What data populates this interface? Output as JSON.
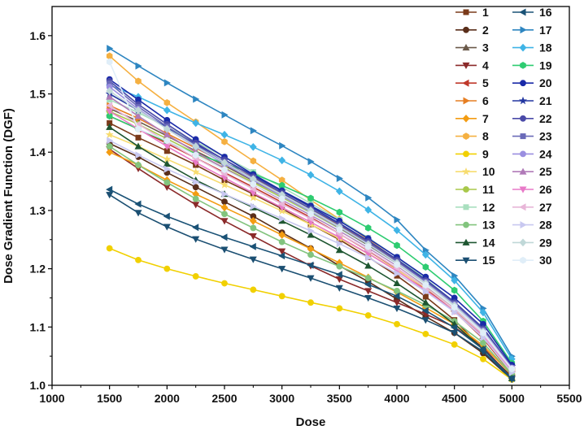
{
  "chart_data": {
    "type": "line",
    "title": "",
    "xlabel": "Dose",
    "ylabel": "Dose Gradient Function (DGF)",
    "xlim": [
      1000,
      5500
    ],
    "ylim": [
      1.0,
      1.65
    ],
    "xticks": [
      1000,
      1500,
      2000,
      2500,
      3000,
      3500,
      4000,
      4500,
      5000,
      5500
    ],
    "yticks": [
      1.0,
      1.1,
      1.2,
      1.3,
      1.4,
      1.5,
      1.6
    ],
    "x": [
      1500,
      1750,
      2000,
      2250,
      2500,
      2750,
      3000,
      3250,
      3500,
      3750,
      4000,
      4250,
      4500,
      4750,
      5000
    ],
    "legend_position": "top-right",
    "series": [
      {
        "name": "1",
        "color": "#7a3a1a",
        "marker": "square",
        "values": [
          1.45,
          1.425,
          1.402,
          1.378,
          1.352,
          1.328,
          1.303,
          1.276,
          1.25,
          1.22,
          1.188,
          1.152,
          1.112,
          1.062,
          1.015
        ]
      },
      {
        "name": "2",
        "color": "#5a2e1a",
        "marker": "circle",
        "values": [
          1.415,
          1.392,
          1.365,
          1.34,
          1.315,
          1.29,
          1.262,
          1.235,
          1.205,
          1.178,
          1.148,
          1.118,
          1.09,
          1.055,
          1.01
        ]
      },
      {
        "name": "3",
        "color": "#6b5a4a",
        "marker": "triangle-up",
        "values": [
          1.475,
          1.453,
          1.428,
          1.402,
          1.377,
          1.351,
          1.325,
          1.298,
          1.27,
          1.24,
          1.208,
          1.172,
          1.132,
          1.085,
          1.022
        ]
      },
      {
        "name": "4",
        "color": "#8b2a2a",
        "marker": "triangle-down",
        "values": [
          1.405,
          1.372,
          1.34,
          1.31,
          1.282,
          1.256,
          1.23,
          1.205,
          1.182,
          1.162,
          1.142,
          1.122,
          1.1,
          1.065,
          1.012
        ]
      },
      {
        "name": "5",
        "color": "#c0392b",
        "marker": "triangle-left",
        "values": [
          1.462,
          1.44,
          1.415,
          1.39,
          1.365,
          1.34,
          1.314,
          1.288,
          1.26,
          1.231,
          1.2,
          1.165,
          1.127,
          1.08,
          1.02
        ]
      },
      {
        "name": "6",
        "color": "#e67e22",
        "marker": "triangle-right",
        "values": [
          1.48,
          1.458,
          1.432,
          1.407,
          1.382,
          1.356,
          1.33,
          1.303,
          1.275,
          1.245,
          1.213,
          1.177,
          1.137,
          1.09,
          1.025
        ]
      },
      {
        "name": "7",
        "color": "#f39c12",
        "marker": "diamond",
        "values": [
          1.4,
          1.378,
          1.352,
          1.328,
          1.305,
          1.282,
          1.258,
          1.234,
          1.21,
          1.185,
          1.16,
          1.133,
          1.105,
          1.068,
          1.018
        ]
      },
      {
        "name": "8",
        "color": "#f5b041",
        "marker": "hexagon",
        "values": [
          1.565,
          1.522,
          1.485,
          1.452,
          1.418,
          1.385,
          1.352,
          1.318,
          1.285,
          1.25,
          1.215,
          1.178,
          1.138,
          1.088,
          1.022
        ]
      },
      {
        "name": "9",
        "color": "#f1d000",
        "marker": "circle",
        "values": [
          1.235,
          1.215,
          1.2,
          1.187,
          1.175,
          1.164,
          1.153,
          1.142,
          1.132,
          1.12,
          1.105,
          1.088,
          1.07,
          1.045,
          1.01
        ]
      },
      {
        "name": "10",
        "color": "#f7dc6f",
        "marker": "star",
        "values": [
          1.43,
          1.41,
          1.388,
          1.366,
          1.344,
          1.322,
          1.299,
          1.276,
          1.252,
          1.226,
          1.198,
          1.167,
          1.132,
          1.088,
          1.025
        ]
      },
      {
        "name": "11",
        "color": "#a8c84a",
        "marker": "circle",
        "values": [
          1.47,
          1.448,
          1.423,
          1.398,
          1.373,
          1.348,
          1.322,
          1.296,
          1.268,
          1.238,
          1.206,
          1.17,
          1.131,
          1.083,
          1.02
        ]
      },
      {
        "name": "12",
        "color": "#a9dfbf",
        "marker": "square",
        "values": [
          1.49,
          1.468,
          1.443,
          1.418,
          1.392,
          1.366,
          1.34,
          1.312,
          1.284,
          1.253,
          1.22,
          1.183,
          1.142,
          1.093,
          1.027
        ]
      },
      {
        "name": "13",
        "color": "#82c47e",
        "marker": "circle",
        "values": [
          1.41,
          1.378,
          1.348,
          1.32,
          1.294,
          1.27,
          1.246,
          1.224,
          1.204,
          1.184,
          1.162,
          1.138,
          1.11,
          1.073,
          1.018
        ]
      },
      {
        "name": "14",
        "color": "#1e5631",
        "marker": "triangle-up",
        "values": [
          1.443,
          1.41,
          1.38,
          1.352,
          1.328,
          1.305,
          1.282,
          1.258,
          1.232,
          1.205,
          1.175,
          1.142,
          1.105,
          1.062,
          1.012
        ]
      },
      {
        "name": "15",
        "color": "#1b4f72",
        "marker": "triangle-down",
        "values": [
          1.327,
          1.296,
          1.272,
          1.251,
          1.233,
          1.216,
          1.2,
          1.184,
          1.167,
          1.15,
          1.132,
          1.112,
          1.09,
          1.058,
          1.01
        ]
      },
      {
        "name": "16",
        "color": "#1a5276",
        "marker": "triangle-left",
        "values": [
          1.336,
          1.311,
          1.29,
          1.271,
          1.254,
          1.238,
          1.222,
          1.206,
          1.19,
          1.173,
          1.153,
          1.128,
          1.099,
          1.062,
          1.012
        ]
      },
      {
        "name": "17",
        "color": "#2e86c1",
        "marker": "triangle-right",
        "values": [
          1.578,
          1.548,
          1.519,
          1.491,
          1.464,
          1.437,
          1.411,
          1.384,
          1.355,
          1.322,
          1.284,
          1.232,
          1.188,
          1.132,
          1.05
        ]
      },
      {
        "name": "18",
        "color": "#3fb4e6",
        "marker": "diamond",
        "values": [
          1.515,
          1.495,
          1.472,
          1.45,
          1.43,
          1.409,
          1.386,
          1.361,
          1.333,
          1.301,
          1.266,
          1.224,
          1.18,
          1.125,
          1.045
        ]
      },
      {
        "name": "19",
        "color": "#2ecc71",
        "marker": "hexagon",
        "values": [
          1.462,
          1.44,
          1.418,
          1.397,
          1.381,
          1.363,
          1.343,
          1.321,
          1.297,
          1.27,
          1.24,
          1.203,
          1.163,
          1.11,
          1.038
        ]
      },
      {
        "name": "20",
        "color": "#1a2aa8",
        "marker": "circle",
        "values": [
          1.525,
          1.49,
          1.455,
          1.422,
          1.392,
          1.362,
          1.334,
          1.308,
          1.282,
          1.252,
          1.22,
          1.186,
          1.15,
          1.105,
          1.035
        ]
      },
      {
        "name": "21",
        "color": "#2236a0",
        "marker": "star",
        "values": [
          1.5,
          1.472,
          1.442,
          1.414,
          1.387,
          1.36,
          1.333,
          1.306,
          1.278,
          1.248,
          1.216,
          1.181,
          1.143,
          1.098,
          1.032
        ]
      },
      {
        "name": "22",
        "color": "#4a4aa8",
        "marker": "circle",
        "values": [
          1.522,
          1.482,
          1.448,
          1.416,
          1.387,
          1.358,
          1.33,
          1.303,
          1.276,
          1.247,
          1.215,
          1.18,
          1.142,
          1.097,
          1.03
        ]
      },
      {
        "name": "23",
        "color": "#6a6ab8",
        "marker": "square",
        "values": [
          1.518,
          1.478,
          1.444,
          1.412,
          1.383,
          1.355,
          1.327,
          1.3,
          1.273,
          1.244,
          1.212,
          1.178,
          1.14,
          1.095,
          1.03
        ]
      },
      {
        "name": "24",
        "color": "#9a8ee0",
        "marker": "circle",
        "values": [
          1.512,
          1.474,
          1.44,
          1.409,
          1.38,
          1.352,
          1.325,
          1.298,
          1.271,
          1.242,
          1.21,
          1.176,
          1.138,
          1.093,
          1.03
        ]
      },
      {
        "name": "25",
        "color": "#b07ab8",
        "marker": "triangle-up",
        "values": [
          1.495,
          1.462,
          1.43,
          1.4,
          1.372,
          1.345,
          1.318,
          1.292,
          1.265,
          1.236,
          1.205,
          1.171,
          1.134,
          1.09,
          1.028
        ]
      },
      {
        "name": "26",
        "color": "#e87ac8",
        "marker": "triangle-down",
        "values": [
          1.47,
          1.44,
          1.41,
          1.382,
          1.356,
          1.33,
          1.305,
          1.28,
          1.254,
          1.226,
          1.196,
          1.163,
          1.127,
          1.084,
          1.025
        ]
      },
      {
        "name": "27",
        "color": "#e8b6d8",
        "marker": "triangle-left",
        "values": [
          1.48,
          1.448,
          1.418,
          1.39,
          1.363,
          1.337,
          1.311,
          1.286,
          1.26,
          1.232,
          1.201,
          1.168,
          1.131,
          1.087,
          1.027
        ]
      },
      {
        "name": "28",
        "color": "#c8c8f0",
        "marker": "triangle-right",
        "values": [
          1.42,
          1.395,
          1.371,
          1.349,
          1.328,
          1.307,
          1.286,
          1.265,
          1.243,
          1.219,
          1.192,
          1.161,
          1.126,
          1.082,
          1.022
        ]
      },
      {
        "name": "29",
        "color": "#c0d8d8",
        "marker": "diamond",
        "values": [
          1.505,
          1.472,
          1.44,
          1.41,
          1.382,
          1.354,
          1.327,
          1.3,
          1.272,
          1.242,
          1.21,
          1.175,
          1.137,
          1.092,
          1.028
        ]
      },
      {
        "name": "30",
        "color": "#e0eef8",
        "marker": "hexagon",
        "values": [
          1.555,
          1.44,
          1.42,
          1.395,
          1.37,
          1.345,
          1.32,
          1.294,
          1.267,
          1.238,
          1.207,
          1.172,
          1.134,
          1.09,
          1.028
        ]
      }
    ]
  }
}
